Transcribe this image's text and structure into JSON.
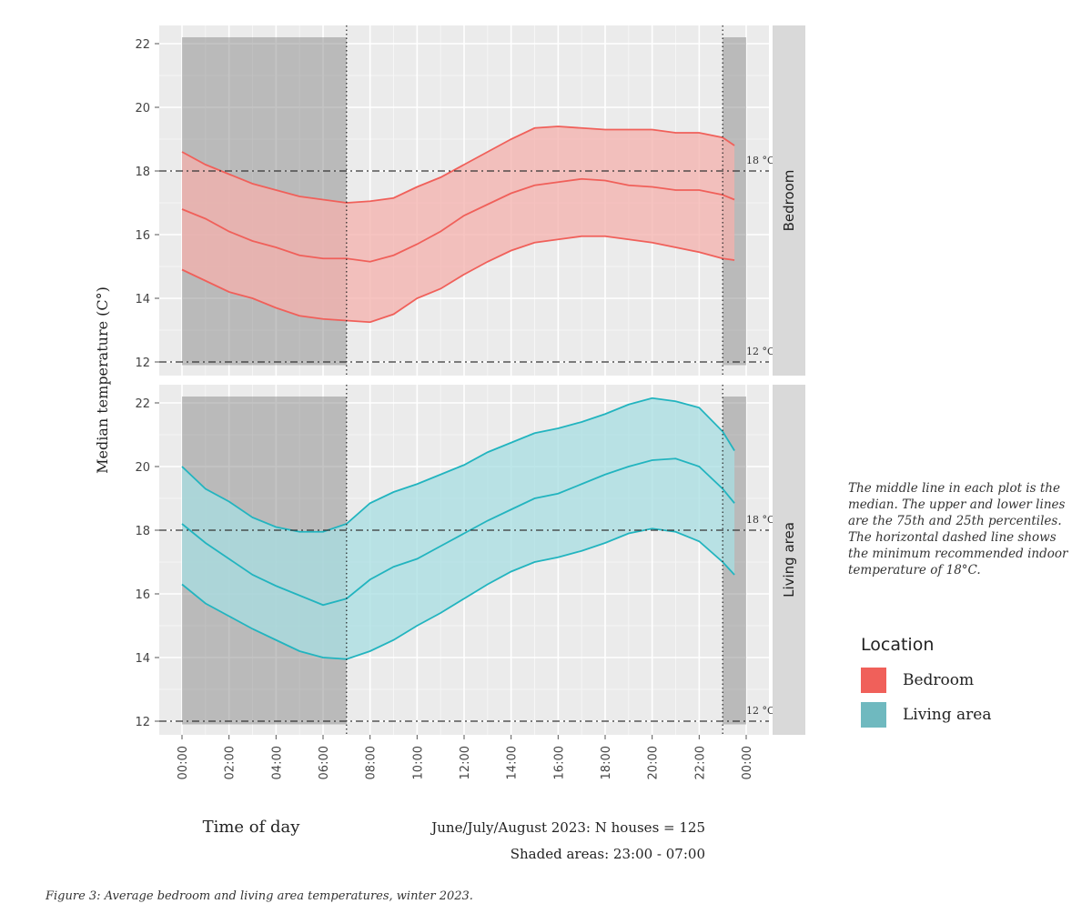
{
  "chart_data": {
    "type": "area",
    "facet_titles": [
      "Bedroom",
      "Living area"
    ],
    "ylabel": "Median temperature (C°)",
    "xlabel": "Time of day",
    "ylim": [
      12,
      22
    ],
    "yticks": [
      12,
      14,
      16,
      18,
      20,
      22
    ],
    "xlim": [
      0,
      24
    ],
    "xticks": [
      0,
      2,
      4,
      6,
      8,
      10,
      12,
      14,
      16,
      18,
      20,
      22,
      24
    ],
    "xtick_labels": [
      "00:00",
      "02:00",
      "04:00",
      "06:00",
      "08:00",
      "10:00",
      "12:00",
      "14:00",
      "16:00",
      "18:00",
      "20:00",
      "22:00",
      "00:00"
    ],
    "reference_lines": [
      {
        "y": 18,
        "label": "18 °C"
      },
      {
        "y": 12,
        "label": "12 °C"
      }
    ],
    "shaded_ranges": [
      [
        0,
        7
      ],
      [
        23,
        24
      ]
    ],
    "grid": true,
    "info_line1": "June/July/August 2023: N houses = 125",
    "info_line2": "Shaded areas: 23:00 - 07:00",
    "series": [
      {
        "name": "Bedroom",
        "color": "#f0605a",
        "fill": "#f4b0ac",
        "x": [
          0,
          1,
          2,
          3,
          4,
          5,
          6,
          7,
          8,
          9,
          10,
          11,
          12,
          13,
          14,
          15,
          16,
          17,
          18,
          19,
          20,
          21,
          22,
          23,
          23.5
        ],
        "upper": [
          18.6,
          18.2,
          17.9,
          17.6,
          17.4,
          17.2,
          17.1,
          17.0,
          17.05,
          17.15,
          17.5,
          17.8,
          18.2,
          18.6,
          19.0,
          19.35,
          19.4,
          19.35,
          19.3,
          19.3,
          19.3,
          19.2,
          19.2,
          19.05,
          18.8
        ],
        "median": [
          16.8,
          16.5,
          16.1,
          15.8,
          15.6,
          15.35,
          15.25,
          15.25,
          15.15,
          15.35,
          15.7,
          16.1,
          16.6,
          16.95,
          17.3,
          17.55,
          17.65,
          17.75,
          17.7,
          17.55,
          17.5,
          17.4,
          17.4,
          17.25,
          17.1
        ],
        "lower": [
          14.9,
          14.55,
          14.2,
          14.0,
          13.7,
          13.45,
          13.35,
          13.3,
          13.25,
          13.5,
          14.0,
          14.3,
          14.75,
          15.15,
          15.5,
          15.75,
          15.85,
          15.95,
          15.95,
          15.85,
          15.75,
          15.6,
          15.45,
          15.25,
          15.2
        ]
      },
      {
        "name": "Living area",
        "color": "#22b4bf",
        "fill": "#a7dde2",
        "x": [
          0,
          1,
          2,
          3,
          4,
          5,
          6,
          7,
          8,
          9,
          10,
          11,
          12,
          13,
          14,
          15,
          16,
          17,
          18,
          19,
          20,
          21,
          22,
          23,
          23.5
        ],
        "upper": [
          20.0,
          19.3,
          18.9,
          18.4,
          18.1,
          17.95,
          17.95,
          18.2,
          18.85,
          19.2,
          19.45,
          19.75,
          20.05,
          20.45,
          20.75,
          21.05,
          21.2,
          21.4,
          21.65,
          21.95,
          22.15,
          22.05,
          21.85,
          21.1,
          20.5
        ],
        "median": [
          18.2,
          17.6,
          17.1,
          16.6,
          16.25,
          15.95,
          15.65,
          15.85,
          16.45,
          16.85,
          17.1,
          17.5,
          17.9,
          18.3,
          18.65,
          19.0,
          19.15,
          19.45,
          19.75,
          20.0,
          20.2,
          20.25,
          20.0,
          19.3,
          18.85
        ],
        "lower": [
          16.3,
          15.7,
          15.3,
          14.9,
          14.55,
          14.2,
          14.0,
          13.95,
          14.2,
          14.55,
          15.0,
          15.4,
          15.85,
          16.3,
          16.7,
          17.0,
          17.15,
          17.35,
          17.6,
          17.9,
          18.05,
          17.95,
          17.65,
          17.0,
          16.6
        ]
      }
    ]
  },
  "note": "The middle line in each plot is the median. The upper and lower lines are the 75th and 25th percentiles. The horizontal dashed line shows the minimum recommended indoor temperature of 18°C.",
  "legend": {
    "title": "Location",
    "items": [
      {
        "label": "Bedroom",
        "color": "#f0605a"
      },
      {
        "label": "Living area",
        "color": "#6fb9bf"
      }
    ]
  },
  "caption": "Figure 3: Average bedroom and living area temperatures, winter 2023."
}
